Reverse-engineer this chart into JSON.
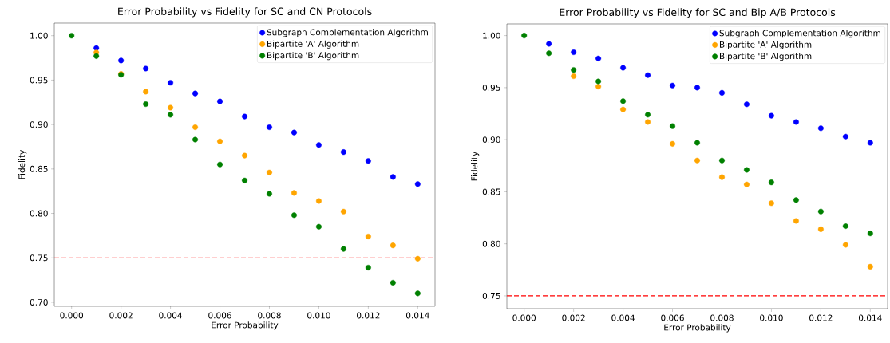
{
  "chart_data": [
    {
      "type": "scatter",
      "title": "Error Probability vs Fidelity for SC and CN Protocols",
      "xlabel": "Error Probability",
      "ylabel": "Fidelity",
      "x": [
        0,
        0.001,
        0.002,
        0.003,
        0.004,
        0.005,
        0.006,
        0.007,
        0.008,
        0.009,
        0.01,
        0.011,
        0.012,
        0.013,
        0.014
      ],
      "series": [
        {
          "name": "Subgraph Complementation Algorithm",
          "color": "#0000ff",
          "values": [
            null,
            0.986,
            0.972,
            0.963,
            0.947,
            0.935,
            0.926,
            0.909,
            0.897,
            0.891,
            0.877,
            0.869,
            0.859,
            0.841,
            0.833
          ]
        },
        {
          "name": "Bipartite 'A' Algorithm",
          "color": "#ffa500",
          "values": [
            null,
            0.981,
            0.957,
            0.937,
            0.919,
            0.897,
            0.881,
            0.865,
            0.846,
            0.823,
            0.814,
            0.802,
            0.774,
            0.764,
            0.749
          ]
        },
        {
          "name": "Bipartite 'B' Algorithm",
          "color": "#008000",
          "values": [
            1.0,
            0.977,
            0.956,
            0.923,
            0.911,
            0.883,
            0.855,
            0.837,
            0.822,
            0.798,
            0.785,
            0.76,
            0.739,
            0.722,
            0.71
          ]
        }
      ],
      "xlim": [
        -0.0007,
        0.0147
      ],
      "ylim": [
        0.6955,
        1.0141
      ],
      "xticks": [
        {
          "value": 0,
          "label": "0.000"
        },
        {
          "value": 0.002,
          "label": "0.002"
        },
        {
          "value": 0.004,
          "label": "0.004"
        },
        {
          "value": 0.006,
          "label": "0.006"
        },
        {
          "value": 0.008,
          "label": "0.008"
        },
        {
          "value": 0.01,
          "label": "0.010"
        },
        {
          "value": 0.012,
          "label": "0.012"
        },
        {
          "value": 0.014,
          "label": "0.014"
        }
      ],
      "yticks": [
        {
          "value": 0.7,
          "label": "0.70"
        },
        {
          "value": 0.75,
          "label": "0.75"
        },
        {
          "value": 0.8,
          "label": "0.80"
        },
        {
          "value": 0.85,
          "label": "0.85"
        },
        {
          "value": 0.9,
          "label": "0.90"
        },
        {
          "value": 0.95,
          "label": "0.95"
        },
        {
          "value": 1.0,
          "label": "1.00"
        }
      ],
      "ref_lines": [
        {
          "axis": "y",
          "value": 0.75,
          "color": "#ff0000",
          "line_style": "dashed"
        }
      ],
      "legend": "top right",
      "grid": false,
      "marker": "circle"
    },
    {
      "type": "scatter",
      "title": "Error Probability vs Fidelity for SC and Bip A/B Protocols",
      "xlabel": "Error Probability",
      "ylabel": "Fidelity",
      "x": [
        0,
        0.001,
        0.002,
        0.003,
        0.004,
        0.005,
        0.006,
        0.007,
        0.008,
        0.009,
        0.01,
        0.011,
        0.012,
        0.013,
        0.014
      ],
      "series": [
        {
          "name": "Subgraph Complementation Algorithm",
          "color": "#0000ff",
          "values": [
            null,
            0.992,
            0.984,
            0.978,
            0.969,
            0.962,
            0.952,
            0.95,
            0.945,
            0.934,
            0.923,
            0.917,
            0.911,
            0.903,
            0.897
          ]
        },
        {
          "name": "Bipartite 'A' Algorithm",
          "color": "#ffa500",
          "values": [
            null,
            null,
            0.961,
            0.951,
            0.929,
            0.917,
            0.896,
            0.88,
            0.864,
            0.857,
            0.839,
            0.822,
            0.814,
            0.799,
            0.778
          ]
        },
        {
          "name": "Bipartite 'B' Algorithm",
          "color": "#008000",
          "values": [
            1.0,
            0.983,
            0.967,
            0.956,
            0.937,
            0.924,
            0.913,
            0.897,
            0.88,
            0.871,
            0.859,
            0.842,
            0.831,
            0.817,
            0.81
          ]
        }
      ],
      "xlim": [
        -0.0007,
        0.0147
      ],
      "ylim": [
        0.7377,
        1.0112
      ],
      "xticks": [
        {
          "value": 0,
          "label": "0.000"
        },
        {
          "value": 0.002,
          "label": "0.002"
        },
        {
          "value": 0.004,
          "label": "0.004"
        },
        {
          "value": 0.006,
          "label": "0.006"
        },
        {
          "value": 0.008,
          "label": "0.008"
        },
        {
          "value": 0.01,
          "label": "0.010"
        },
        {
          "value": 0.012,
          "label": "0.012"
        },
        {
          "value": 0.014,
          "label": "0.014"
        }
      ],
      "yticks": [
        {
          "value": 0.75,
          "label": "0.75"
        },
        {
          "value": 0.8,
          "label": "0.80"
        },
        {
          "value": 0.85,
          "label": "0.85"
        },
        {
          "value": 0.9,
          "label": "0.90"
        },
        {
          "value": 0.95,
          "label": "0.95"
        },
        {
          "value": 1.0,
          "label": "1.00"
        }
      ],
      "ref_lines": [
        {
          "axis": "y",
          "value": 0.75,
          "color": "#ff0000",
          "line_style": "dashed"
        }
      ],
      "legend": "top right",
      "grid": false,
      "marker": "circle"
    }
  ]
}
